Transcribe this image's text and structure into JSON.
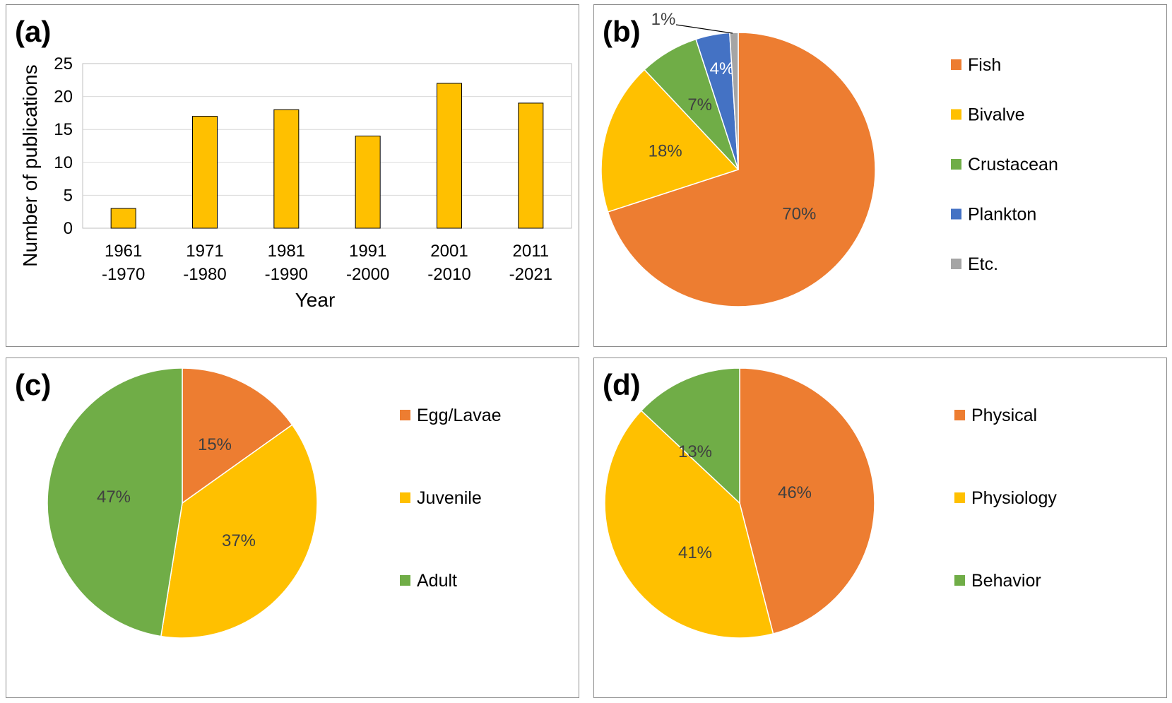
{
  "colors": {
    "orange": "#ED7D31",
    "yellow": "#FFC000",
    "green": "#70AD47",
    "blue": "#4472C4",
    "gray": "#A5A5A5",
    "bar_fill": "#FFC000",
    "bar_stroke": "#000000",
    "pie_label": "#404040",
    "grid": "#d9d9d9"
  },
  "chart_data": [
    {
      "panel": "(a)",
      "type": "bar",
      "categories": [
        [
          "1961",
          "-1970"
        ],
        [
          "1971",
          "-1980"
        ],
        [
          "1981",
          "-1990"
        ],
        [
          "1991",
          "-2000"
        ],
        [
          "2001",
          "-2010"
        ],
        [
          "2011",
          "-2021"
        ]
      ],
      "values": [
        3,
        17,
        18,
        14,
        22,
        19
      ],
      "xlabel": "Year",
      "ylabel": "Number of publications",
      "ylim": [
        0,
        25
      ],
      "yticks": [
        0,
        5,
        10,
        15,
        20,
        25
      ],
      "grid": true
    },
    {
      "panel": "(b)",
      "type": "pie",
      "slices": [
        {
          "label": "Fish",
          "value": 70,
          "text": "70%",
          "color": "orange"
        },
        {
          "label": "Bivalve",
          "value": 18,
          "text": "18%",
          "color": "yellow"
        },
        {
          "label": "Crustacean",
          "value": 7,
          "text": "7%",
          "color": "green"
        },
        {
          "label": "Plankton",
          "value": 4,
          "text": "4%",
          "color": "blue"
        },
        {
          "label": "Etc.",
          "value": 1,
          "text": "1%",
          "color": "gray"
        }
      ],
      "legend": "right"
    },
    {
      "panel": "(c)",
      "type": "pie",
      "slices": [
        {
          "label": "Egg/Lavae",
          "value": 15,
          "text": "15%",
          "color": "orange"
        },
        {
          "label": "Juvenile",
          "value": 37,
          "text": "37%",
          "color": "yellow"
        },
        {
          "label": "Adult",
          "value": 47,
          "text": "47%",
          "color": "green"
        }
      ],
      "legend": "right"
    },
    {
      "panel": "(d)",
      "type": "pie",
      "slices": [
        {
          "label": "Physical",
          "value": 46,
          "text": "46%",
          "color": "orange"
        },
        {
          "label": "Physiology",
          "value": 41,
          "text": "41%",
          "color": "yellow"
        },
        {
          "label": "Behavior",
          "value": 13,
          "text": "13%",
          "color": "green"
        }
      ],
      "legend": "right"
    }
  ]
}
